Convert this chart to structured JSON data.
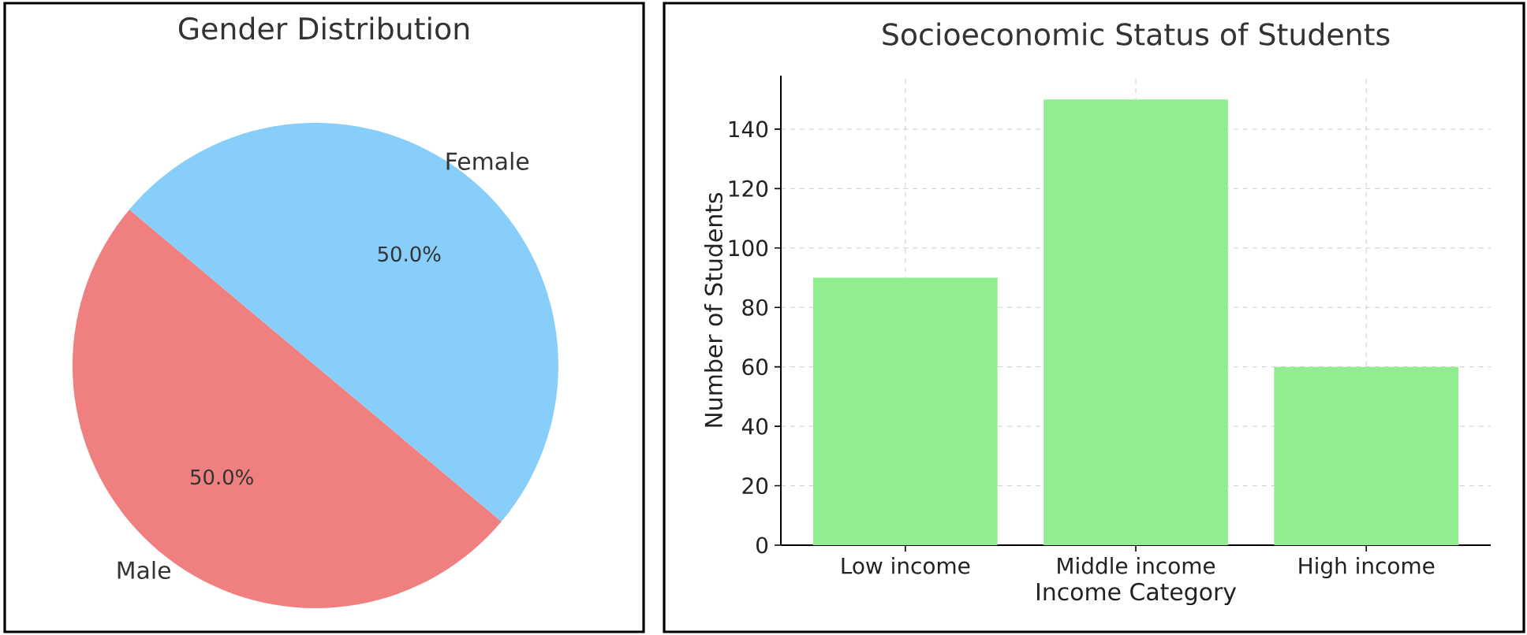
{
  "chart_data": [
    {
      "type": "pie",
      "title": "Gender Distribution",
      "categories": [
        "Male",
        "Female"
      ],
      "values": [
        50,
        50
      ],
      "colors": [
        "#f08080",
        "#87cefa"
      ],
      "value_labels": [
        "50.0%",
        "50.0%"
      ]
    },
    {
      "type": "bar",
      "title": "Socioeconomic Status of Students",
      "xlabel": "Income Category",
      "ylabel": "Number of Students",
      "categories": [
        "Low income",
        "Middle income",
        "High income"
      ],
      "values": [
        90,
        150,
        60
      ],
      "color": "#90ee90",
      "ylim": [
        0,
        158
      ],
      "yticks": [
        0,
        20,
        40,
        60,
        80,
        100,
        120,
        140
      ],
      "grid": true
    }
  ]
}
